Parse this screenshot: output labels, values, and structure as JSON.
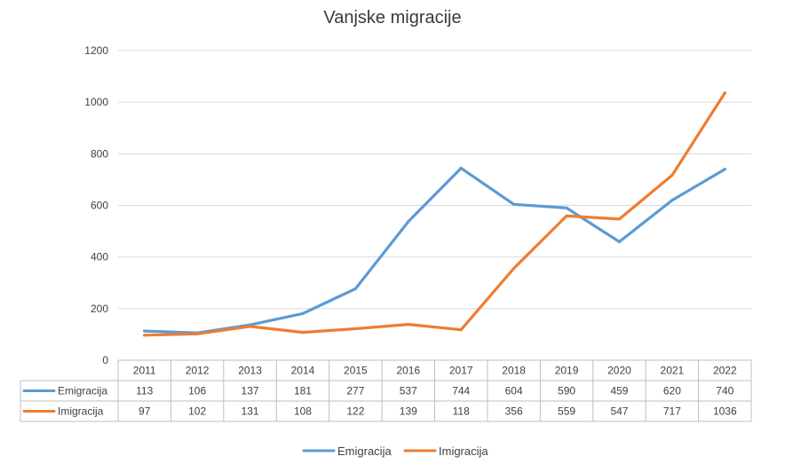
{
  "chart_data": {
    "type": "line",
    "title": "Vanjske migracije",
    "xlabel": "",
    "ylabel": "",
    "categories": [
      "2011",
      "2012",
      "2013",
      "2014",
      "2015",
      "2016",
      "2017",
      "2018",
      "2019",
      "2020",
      "2021",
      "2022"
    ],
    "ylim": [
      0,
      1200
    ],
    "yticks": [
      0,
      200,
      400,
      600,
      800,
      1000,
      1200
    ],
    "grid": true,
    "data_table": true,
    "legend_position": "bottom",
    "series": [
      {
        "name": "Emigracija",
        "color": "#5b9bd5",
        "values": [
          113,
          106,
          137,
          181,
          277,
          537,
          744,
          604,
          590,
          459,
          620,
          740
        ]
      },
      {
        "name": "Imigracija",
        "color": "#ed7d31",
        "values": [
          97,
          102,
          131,
          108,
          122,
          139,
          118,
          356,
          559,
          547,
          717,
          1036
        ]
      }
    ]
  }
}
